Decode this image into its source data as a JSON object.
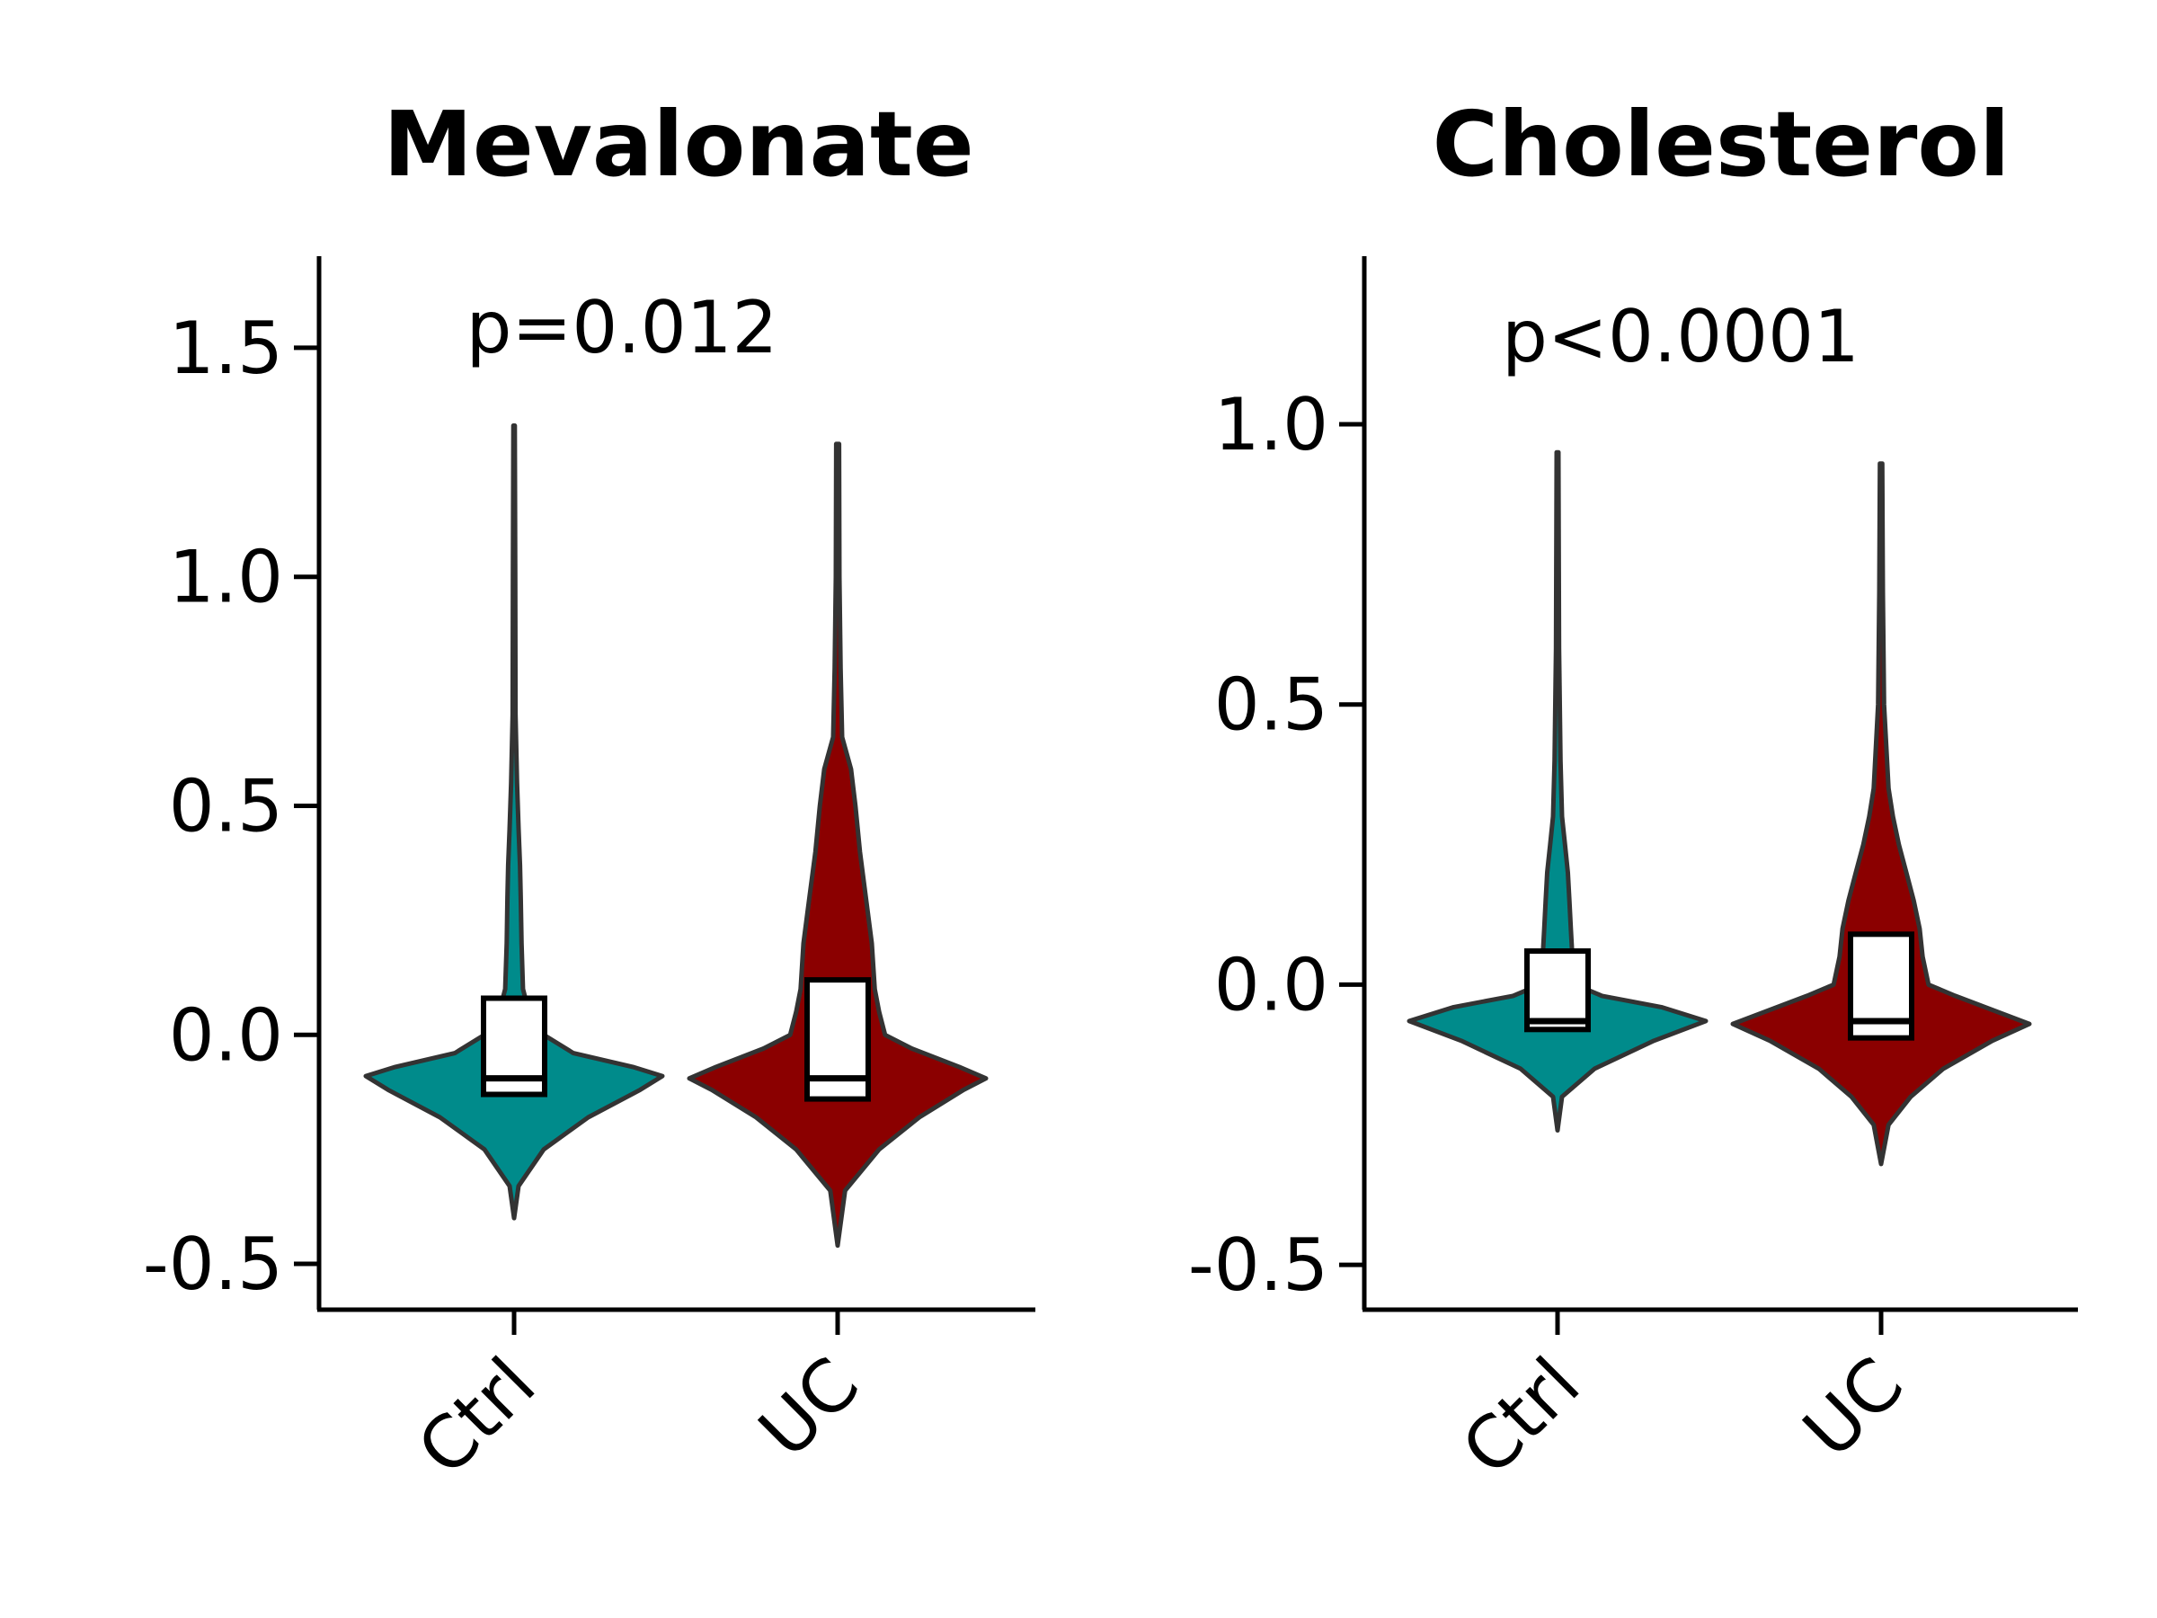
{
  "chart_data": [
    {
      "type": "violin",
      "title": "Mevalonate",
      "categories": [
        "Ctrl",
        "UC"
      ],
      "annotation": "p=0.012",
      "ylim": [
        -0.6,
        1.7
      ],
      "yticks": [
        -0.5,
        0.0,
        0.5,
        1.0,
        1.5
      ],
      "ytick_labels": [
        "-0.5",
        "0.0",
        "0.5",
        "1.0",
        "1.5"
      ],
      "series": [
        {
          "color": "#008b8b",
          "min": -0.4,
          "max": 1.33,
          "mode": -0.09,
          "q1": -0.13,
          "median": -0.095,
          "q3": 0.08,
          "density": [
            [
              -0.4,
              0.0
            ],
            [
              -0.33,
              0.03
            ],
            [
              -0.25,
              0.2
            ],
            [
              -0.18,
              0.5
            ],
            [
              -0.12,
              0.85
            ],
            [
              -0.09,
              1.0
            ],
            [
              -0.07,
              0.8
            ],
            [
              -0.04,
              0.4
            ],
            [
              0.0,
              0.2
            ],
            [
              0.05,
              0.1
            ],
            [
              0.1,
              0.06
            ],
            [
              0.2,
              0.05
            ],
            [
              0.3,
              0.045
            ],
            [
              0.37,
              0.04
            ],
            [
              0.45,
              0.03
            ],
            [
              0.55,
              0.02
            ],
            [
              0.7,
              0.01
            ],
            [
              1.0,
              0.008
            ],
            [
              1.33,
              0.005
            ]
          ]
        },
        {
          "color": "#8b0000",
          "min": -0.46,
          "max": 1.29,
          "mode": -0.095,
          "q1": -0.14,
          "median": -0.095,
          "q3": 0.12,
          "density": [
            [
              -0.46,
              0.0
            ],
            [
              -0.34,
              0.05
            ],
            [
              -0.25,
              0.28
            ],
            [
              -0.18,
              0.55
            ],
            [
              -0.12,
              0.85
            ],
            [
              -0.095,
              1.0
            ],
            [
              -0.07,
              0.82
            ],
            [
              -0.03,
              0.5
            ],
            [
              0.0,
              0.32
            ],
            [
              0.05,
              0.28
            ],
            [
              0.1,
              0.25
            ],
            [
              0.2,
              0.23
            ],
            [
              0.3,
              0.19
            ],
            [
              0.4,
              0.15
            ],
            [
              0.5,
              0.12
            ],
            [
              0.58,
              0.09
            ],
            [
              0.65,
              0.03
            ],
            [
              0.8,
              0.02
            ],
            [
              1.0,
              0.012
            ],
            [
              1.29,
              0.01
            ]
          ]
        }
      ]
    },
    {
      "type": "violin",
      "title": "Cholesterol",
      "categories": [
        "Ctrl",
        "UC"
      ],
      "annotation": "p<0.0001",
      "ylim": [
        -0.58,
        1.3
      ],
      "yticks": [
        -0.5,
        0.0,
        0.5,
        1.0
      ],
      "ytick_labels": [
        "-0.5",
        "0.0",
        "0.5",
        "1.0"
      ],
      "series": [
        {
          "color": "#008b8b",
          "min": -0.26,
          "max": 0.95,
          "mode": -0.065,
          "q1": -0.08,
          "median": -0.065,
          "q3": 0.06,
          "density": [
            [
              -0.26,
              0.0
            ],
            [
              -0.2,
              0.03
            ],
            [
              -0.15,
              0.25
            ],
            [
              -0.1,
              0.65
            ],
            [
              -0.065,
              1.0
            ],
            [
              -0.04,
              0.7
            ],
            [
              -0.02,
              0.3
            ],
            [
              0.0,
              0.12
            ],
            [
              0.05,
              0.1
            ],
            [
              0.1,
              0.09
            ],
            [
              0.15,
              0.08
            ],
            [
              0.2,
              0.07
            ],
            [
              0.25,
              0.05
            ],
            [
              0.3,
              0.03
            ],
            [
              0.4,
              0.02
            ],
            [
              0.6,
              0.01
            ],
            [
              0.95,
              0.006
            ]
          ]
        },
        {
          "color": "#8b0000",
          "min": -0.32,
          "max": 0.93,
          "mode": -0.07,
          "q1": -0.095,
          "median": -0.065,
          "q3": 0.09,
          "density": [
            [
              -0.32,
              0.0
            ],
            [
              -0.25,
              0.05
            ],
            [
              -0.2,
              0.2
            ],
            [
              -0.15,
              0.42
            ],
            [
              -0.1,
              0.75
            ],
            [
              -0.07,
              1.0
            ],
            [
              -0.05,
              0.8
            ],
            [
              -0.02,
              0.5
            ],
            [
              0.0,
              0.32
            ],
            [
              0.05,
              0.28
            ],
            [
              0.1,
              0.26
            ],
            [
              0.15,
              0.22
            ],
            [
              0.2,
              0.17
            ],
            [
              0.25,
              0.12
            ],
            [
              0.3,
              0.08
            ],
            [
              0.35,
              0.05
            ],
            [
              0.5,
              0.02
            ],
            [
              0.7,
              0.012
            ],
            [
              0.93,
              0.008
            ]
          ]
        }
      ]
    }
  ]
}
